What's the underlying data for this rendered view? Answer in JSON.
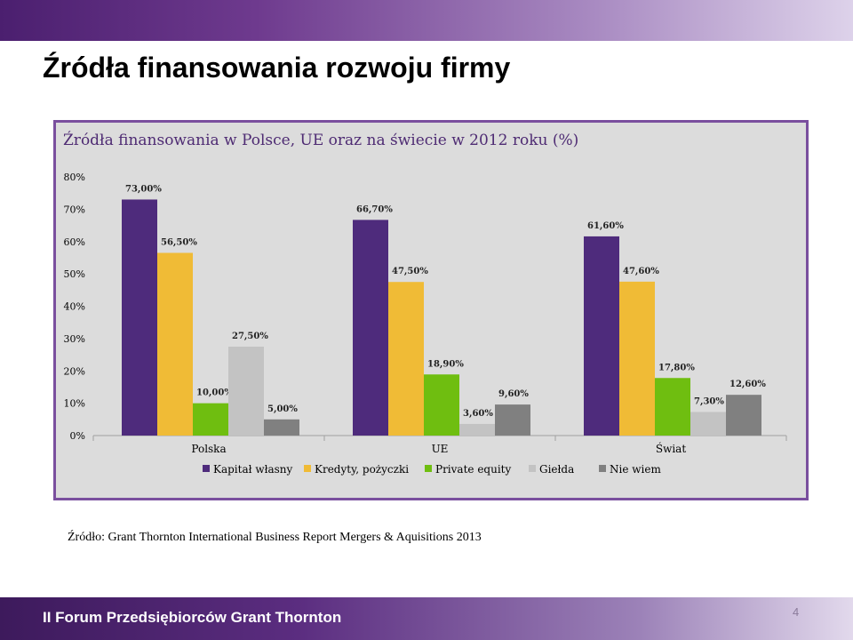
{
  "slide": {
    "title": "Źródła finansowania rozwoju firmy",
    "source": "Źródło: Grant Thornton International  Business Report Mergers & Aquisitions 2013",
    "footer": "II Forum Przedsiębiorców Grant Thornton",
    "page_number": "4"
  },
  "chart_data": {
    "type": "bar",
    "title": "Źródła finansowania w Polsce, UE oraz na świecie w 2012 roku (%)",
    "categories": [
      "Polska",
      "UE",
      "Świat"
    ],
    "series": [
      {
        "name": "Kapitał własny",
        "color": "#4e2b7c",
        "values": [
          73.0,
          66.7,
          61.6
        ],
        "labels": [
          "73,00%",
          "66,70%",
          "61,60%"
        ]
      },
      {
        "name": "Kredyty, pożyczki",
        "color": "#f0bb36",
        "values": [
          56.5,
          47.5,
          47.6
        ],
        "labels": [
          "56,50%",
          "47,50%",
          "47,60%"
        ]
      },
      {
        "name": "Private equity",
        "color": "#6fbe10",
        "values": [
          10.0,
          18.9,
          17.8
        ],
        "labels": [
          "10,00%",
          "18,90%",
          "17,80%"
        ]
      },
      {
        "name": "Giełda",
        "color": "#c3c3c3",
        "values": [
          27.5,
          3.6,
          7.3
        ],
        "labels": [
          "27,50%",
          "3,60%",
          "7,30%"
        ]
      },
      {
        "name": "Nie wiem",
        "color": "#808080",
        "values": [
          5.0,
          9.6,
          12.6
        ],
        "labels": [
          "5,00%",
          "9,60%",
          "12,60%"
        ]
      }
    ],
    "yticks": [
      "0%",
      "10%",
      "20%",
      "30%",
      "40%",
      "50%",
      "60%",
      "70%",
      "80%"
    ],
    "ylim": [
      0,
      80
    ],
    "legend": "bottom",
    "grid": false
  }
}
